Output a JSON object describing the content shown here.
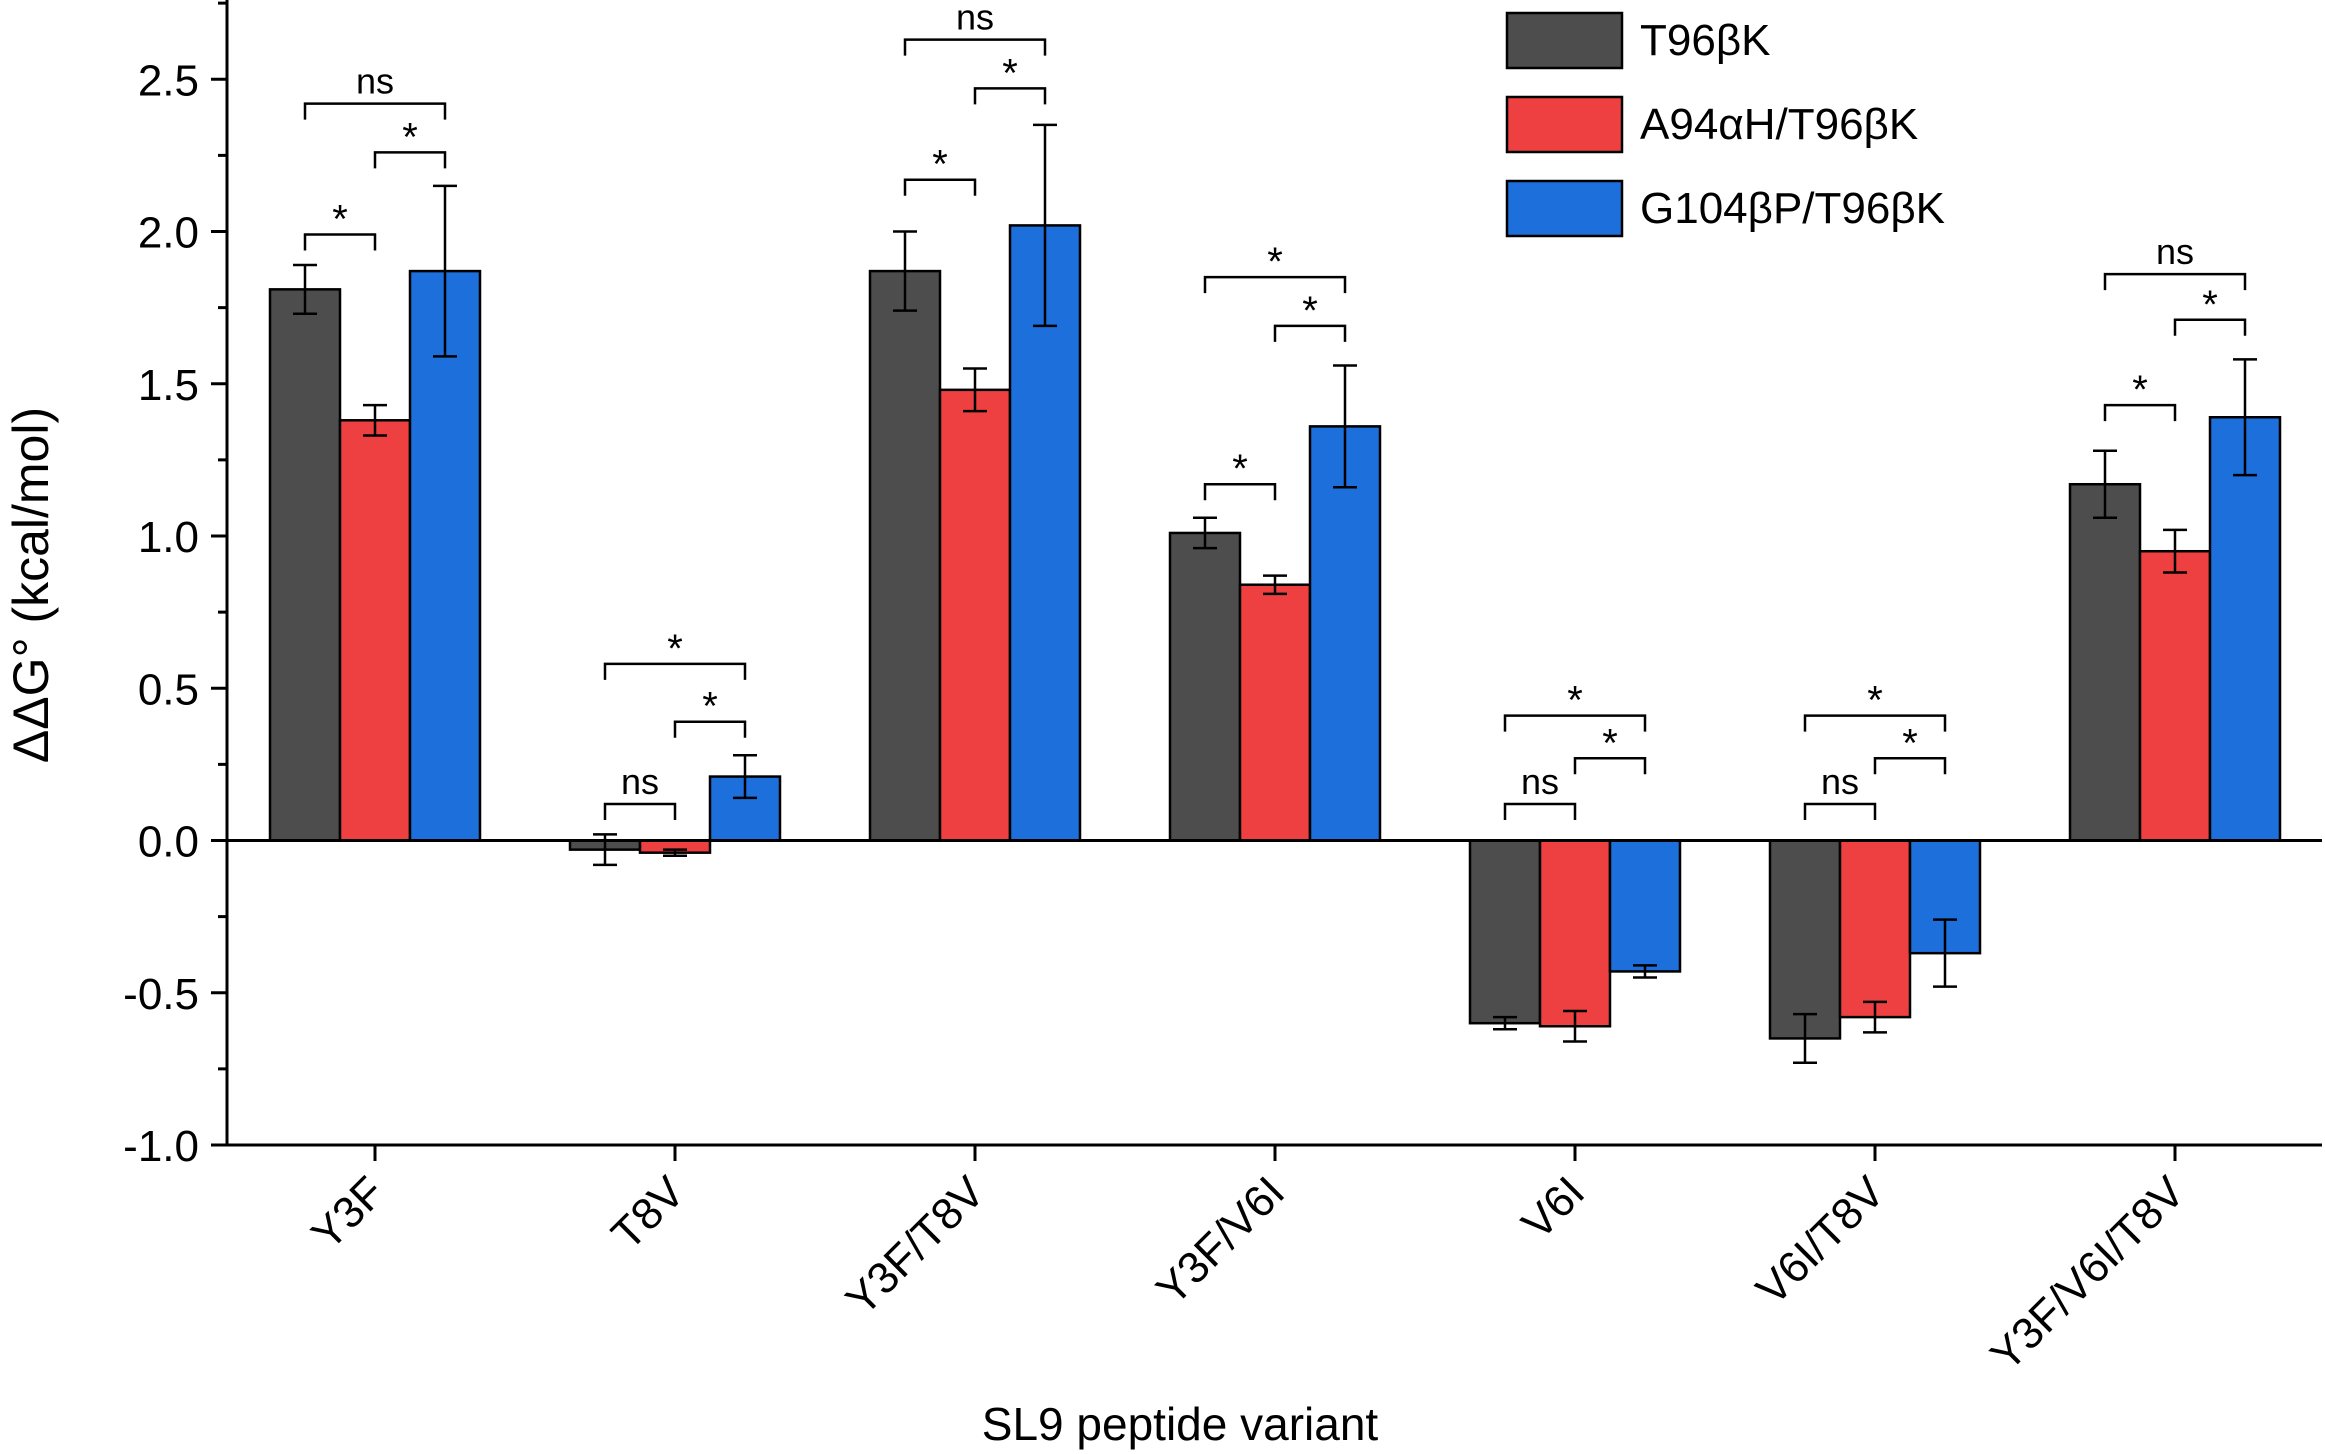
{
  "chart_data": {
    "type": "bar",
    "xlabel": "SL9 peptide variant",
    "ylabel": "ΔΔG° (kcal/mol)",
    "ylim": [
      -1.0,
      2.75
    ],
    "yticks": [
      -1.0,
      -0.5,
      0.0,
      0.5,
      1.0,
      1.5,
      2.0,
      2.5
    ],
    "ytick_labels": [
      "-1.0",
      "-0.5",
      "0.0",
      "0.5",
      "1.0",
      "1.5",
      "2.0",
      "2.5"
    ],
    "categories": [
      "Y3F",
      "T8V",
      "Y3F/T8V",
      "Y3F/V6I",
      "V6I",
      "V6I/T8V",
      "Y3F/V6I/T8V"
    ],
    "legend_position": "top-right",
    "series": [
      {
        "name": "T96βK",
        "color": "#4d4d4d",
        "values": [
          1.81,
          -0.03,
          1.87,
          1.01,
          -0.6,
          -0.65,
          1.17
        ],
        "errors": [
          0.08,
          0.05,
          0.13,
          0.05,
          0.02,
          0.08,
          0.11
        ]
      },
      {
        "name": "A94αH/T96βK",
        "color": "#ee4041",
        "values": [
          1.38,
          -0.04,
          1.48,
          0.84,
          -0.61,
          -0.58,
          0.95
        ],
        "errors": [
          0.05,
          0.01,
          0.07,
          0.03,
          0.05,
          0.05,
          0.07
        ]
      },
      {
        "name": "G104βP/T96βK",
        "color": "#1d6fdc",
        "values": [
          1.87,
          0.21,
          2.02,
          1.36,
          -0.43,
          -0.37,
          1.39
        ],
        "errors": [
          0.28,
          0.07,
          0.33,
          0.2,
          0.02,
          0.11,
          0.19
        ]
      }
    ],
    "significance": [
      {
        "category": 0,
        "from": 0,
        "to": 1,
        "label": "*",
        "at": 1.99
      },
      {
        "category": 0,
        "from": 1,
        "to": 2,
        "label": "*",
        "at": 2.26
      },
      {
        "category": 0,
        "from": 0,
        "to": 2,
        "label": "ns",
        "at": 2.42
      },
      {
        "category": 1,
        "from": 0,
        "to": 1,
        "label": "ns",
        "at": 0.12
      },
      {
        "category": 1,
        "from": 1,
        "to": 2,
        "label": "*",
        "at": 0.39
      },
      {
        "category": 1,
        "from": 0,
        "to": 2,
        "label": "*",
        "at": 0.58
      },
      {
        "category": 2,
        "from": 0,
        "to": 1,
        "label": "*",
        "at": 2.17
      },
      {
        "category": 2,
        "from": 1,
        "to": 2,
        "label": "*",
        "at": 2.47
      },
      {
        "category": 2,
        "from": 0,
        "to": 2,
        "label": "ns",
        "at": 2.63
      },
      {
        "category": 3,
        "from": 0,
        "to": 1,
        "label": "*",
        "at": 1.17
      },
      {
        "category": 3,
        "from": 1,
        "to": 2,
        "label": "*",
        "at": 1.69
      },
      {
        "category": 3,
        "from": 0,
        "to": 2,
        "label": "*",
        "at": 1.85
      },
      {
        "category": 4,
        "from": 0,
        "to": 1,
        "label": "ns",
        "at": 0.12
      },
      {
        "category": 4,
        "from": 1,
        "to": 2,
        "label": "*",
        "at": 0.27
      },
      {
        "category": 4,
        "from": 0,
        "to": 2,
        "label": "*",
        "at": 0.41
      },
      {
        "category": 5,
        "from": 0,
        "to": 1,
        "label": "ns",
        "at": 0.12
      },
      {
        "category": 5,
        "from": 1,
        "to": 2,
        "label": "*",
        "at": 0.27
      },
      {
        "category": 5,
        "from": 0,
        "to": 2,
        "label": "*",
        "at": 0.41
      },
      {
        "category": 6,
        "from": 0,
        "to": 1,
        "label": "*",
        "at": 1.43
      },
      {
        "category": 6,
        "from": 1,
        "to": 2,
        "label": "*",
        "at": 1.71
      },
      {
        "category": 6,
        "from": 0,
        "to": 2,
        "label": "ns",
        "at": 1.86
      }
    ]
  }
}
